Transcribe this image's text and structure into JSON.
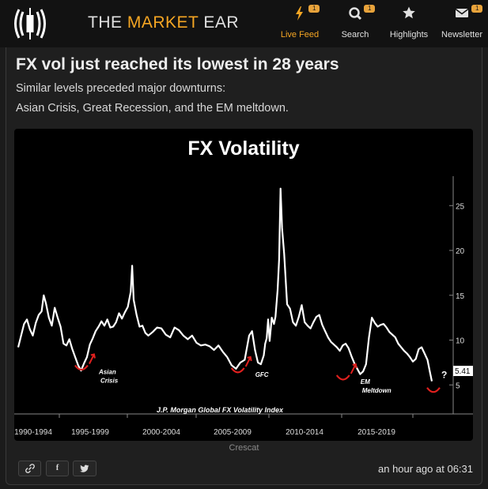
{
  "site": {
    "brand_prefix": "THE ",
    "brand_accent": "MARKET",
    "brand_suffix": " EAR",
    "accent_color": "#f5a623"
  },
  "nav": {
    "live_feed": {
      "label": "Live Feed",
      "icon": "bolt-icon",
      "badge": "1"
    },
    "search": {
      "label": "Search",
      "icon": "search-icon",
      "badge": "1"
    },
    "highlights": {
      "label": "Highlights",
      "icon": "star-icon"
    },
    "newsletter": {
      "label": "Newsletter",
      "icon": "envelope-icon",
      "badge": "1"
    }
  },
  "post": {
    "title": "FX vol just reached its lowest in 28 years",
    "subtitle_line1": "Similar levels preceded major downturns:",
    "subtitle_line2": "Asian Crisis, Great Recession, and the EM meltdown.",
    "image_caption": "Crescat",
    "timestamp": "an hour ago at 06:31"
  },
  "share": {
    "link_icon": "link-icon",
    "facebook_label": "f",
    "twitter_icon": "twitter-icon"
  },
  "chart_data": {
    "type": "line",
    "title": "FX Volatility",
    "source_label": "J.P. Morgan Global FX Volatility Index",
    "x_tick_labels": [
      "1990-1994",
      "1995-1999",
      "2000-2004",
      "2005-2009",
      "2010-2014",
      "2015-2019"
    ],
    "x_range": [
      1991.0,
      2019.3
    ],
    "y_ticks": [
      5,
      10,
      15,
      20,
      25
    ],
    "y_range": [
      0,
      28
    ],
    "last_value_label": "5.41",
    "annotations": [
      {
        "text": "Asian Crisis",
        "x": 1996.3,
        "y": 6.3
      },
      {
        "text": "GFC",
        "x": 2007.0,
        "y": 6.0
      },
      {
        "text": "EM Meltdown",
        "x": 2014.2,
        "y": 5.2
      },
      {
        "text": "?",
        "x": 2019.3,
        "y": 5.4
      }
    ],
    "series": [
      {
        "name": "J.P. Morgan Global FX Volatility Index",
        "x": [
          1991.0,
          1991.2,
          1991.4,
          1991.6,
          1991.8,
          1992.0,
          1992.2,
          1992.4,
          1992.6,
          1992.75,
          1992.9,
          1993.1,
          1993.3,
          1993.5,
          1993.7,
          1993.9,
          1994.1,
          1994.3,
          1994.5,
          1994.7,
          1994.9,
          1995.1,
          1995.3,
          1995.5,
          1995.7,
          1995.9,
          1996.1,
          1996.3,
          1996.5,
          1996.7,
          1996.9,
          1997.1,
          1997.3,
          1997.5,
          1997.7,
          1997.9,
          1998.1,
          1998.3,
          1998.5,
          1998.7,
          1998.8,
          1998.9,
          1999.1,
          1999.3,
          1999.5,
          1999.7,
          1999.9,
          2000.2,
          2000.5,
          2000.8,
          2001.1,
          2001.4,
          2001.7,
          2002.0,
          2002.3,
          2002.6,
          2002.9,
          2003.2,
          2003.5,
          2003.8,
          2004.1,
          2004.4,
          2004.7,
          2005.0,
          2005.3,
          2005.6,
          2005.9,
          2006.2,
          2006.5,
          2006.8,
          2007.0,
          2007.2,
          2007.4,
          2007.6,
          2007.8,
          2007.9,
          2008.0,
          2008.1,
          2008.2,
          2008.35,
          2008.5,
          2008.6,
          2008.75,
          2008.85,
          2008.95,
          2009.05,
          2009.2,
          2009.4,
          2009.6,
          2009.8,
          2010.0,
          2010.2,
          2010.4,
          2010.6,
          2010.8,
          2011.0,
          2011.2,
          2011.4,
          2011.6,
          2011.8,
          2012.0,
          2012.2,
          2012.4,
          2012.6,
          2012.8,
          2013.0,
          2013.2,
          2013.4,
          2013.6,
          2013.8,
          2014.0,
          2014.2,
          2014.4,
          2014.6,
          2014.8,
          2015.0,
          2015.2,
          2015.4,
          2015.6,
          2015.8,
          2016.0,
          2016.2,
          2016.4,
          2016.6,
          2016.8,
          2017.0,
          2017.2,
          2017.4,
          2017.6,
          2017.8,
          2018.0,
          2018.2,
          2018.4,
          2018.6,
          2018.8,
          2019.0,
          2019.15,
          2019.3
        ],
        "values": [
          9.2,
          10.5,
          11.8,
          12.3,
          11.2,
          10.5,
          11.9,
          12.8,
          13.2,
          15.0,
          14.1,
          12.5,
          11.6,
          13.6,
          12.5,
          11.5,
          9.6,
          9.4,
          10.1,
          9.0,
          8.1,
          7.2,
          6.6,
          7.4,
          8.1,
          9.5,
          10.2,
          11.0,
          11.5,
          12.1,
          11.6,
          12.3,
          11.4,
          11.5,
          12.0,
          13.0,
          12.4,
          13.1,
          13.7,
          15.4,
          18.3,
          14.5,
          12.8,
          11.5,
          11.6,
          10.8,
          10.5,
          10.9,
          11.4,
          11.3,
          10.6,
          10.3,
          11.4,
          11.1,
          10.5,
          10.1,
          10.5,
          9.7,
          9.4,
          9.5,
          9.3,
          8.9,
          9.4,
          8.7,
          8.1,
          7.2,
          6.8,
          7.5,
          7.8,
          10.5,
          11.0,
          8.9,
          7.5,
          7.3,
          8.3,
          9.6,
          10.2,
          12.3,
          9.9,
          12.5,
          11.8,
          12.6,
          15.6,
          19.0,
          26.9,
          22.5,
          19.6,
          14.0,
          13.5,
          12.0,
          11.6,
          12.6,
          13.9,
          12.0,
          11.6,
          11.3,
          12.0,
          12.6,
          12.8,
          11.7,
          11.0,
          10.3,
          9.8,
          9.5,
          9.2,
          8.8,
          9.4,
          9.6,
          9.1,
          8.2,
          7.4,
          6.8,
          6.2,
          6.5,
          7.3,
          10.3,
          12.5,
          11.9,
          11.5,
          11.7,
          11.8,
          11.4,
          10.9,
          10.6,
          10.3,
          9.6,
          9.2,
          8.8,
          8.5,
          8.1,
          7.6,
          7.9,
          9.0,
          9.2,
          8.5,
          7.8,
          6.6,
          5.41
        ]
      }
    ]
  }
}
